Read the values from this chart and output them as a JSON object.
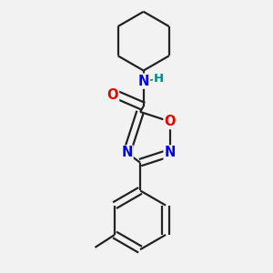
{
  "background_color": "#f2f2f2",
  "bond_color": "#222222",
  "bond_width": 1.6,
  "dbo": 0.055,
  "atom_colors": {
    "N": "#0000ee",
    "O": "#ee0000",
    "H": "#008888"
  },
  "fs": 10.5
}
